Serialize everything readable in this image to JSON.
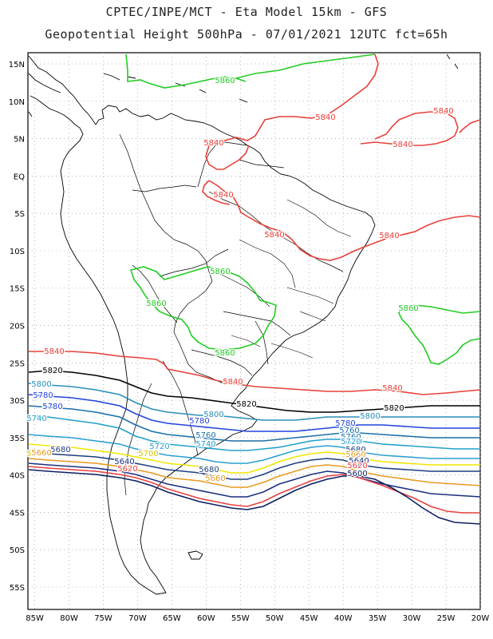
{
  "header": {
    "line1": "CPTEC/INPE/MCT -  Eta Model 15km - GFS",
    "line2": "Geopotential Height 500hPa - 07/01/2021 12UTC fct=65h"
  },
  "axes": {
    "lat_labels": [
      "15N",
      "10N",
      "5N",
      "EQ",
      "5S",
      "10S",
      "15S",
      "20S",
      "25S",
      "30S",
      "35S",
      "40S",
      "45S",
      "50S",
      "55S"
    ],
    "lon_labels": [
      "85W",
      "80W",
      "75W",
      "70W",
      "65W",
      "60W",
      "55W",
      "50W",
      "45W",
      "40W",
      "35W",
      "30W",
      "25W",
      "20W"
    ],
    "lat_range": [
      16.5,
      -58
    ],
    "lon_range": [
      -86,
      -20
    ]
  },
  "colors": {
    "c5860": "#22cc22",
    "c5840": "#e8403a",
    "c5820": "#000000",
    "c5800": "#2a8fb8",
    "c5780": "#2244dd",
    "c5760": "#1a6fa8",
    "c5740": "#22a0c8",
    "c5720": "#2a9fd0",
    "c5700": "#f2e600",
    "c5680": "#1f3f80",
    "c5660": "#e89a20",
    "c5640": "#1a2f80",
    "c5620": "#e84040",
    "c5600": "#0d1f60",
    "coast": "#000000"
  },
  "contour_labels": [
    {
      "text": "5860",
      "color": "#22cc22"
    },
    {
      "text": "5860",
      "color": "#22cc22"
    },
    {
      "text": "5860",
      "color": "#22cc22"
    },
    {
      "text": "5860",
      "color": "#22cc22"
    },
    {
      "text": "5860",
      "color": "#22cc22"
    },
    {
      "text": "5840",
      "color": "#e8403a"
    },
    {
      "text": "5840",
      "color": "#e8403a"
    },
    {
      "text": "5840",
      "color": "#e8403a"
    },
    {
      "text": "5840",
      "color": "#e8403a"
    },
    {
      "text": "5840",
      "color": "#e8403a"
    },
    {
      "text": "5840",
      "color": "#e8403a"
    },
    {
      "text": "5840",
      "color": "#e8403a"
    },
    {
      "text": "5840",
      "color": "#e8403a"
    },
    {
      "text": "5840",
      "color": "#e8403a"
    },
    {
      "text": "5840",
      "color": "#e8403a"
    },
    {
      "text": "5820",
      "color": "#000000"
    },
    {
      "text": "5820",
      "color": "#000000"
    },
    {
      "text": "5820",
      "color": "#000000"
    },
    {
      "text": "5800",
      "color": "#2a8fb8"
    },
    {
      "text": "5800",
      "color": "#2a8fb8"
    },
    {
      "text": "5800",
      "color": "#2a8fb8"
    },
    {
      "text": "5780",
      "color": "#2244dd"
    },
    {
      "text": "5780",
      "color": "#2244dd"
    },
    {
      "text": "5780",
      "color": "#2244dd"
    },
    {
      "text": "5780",
      "color": "#2244dd"
    },
    {
      "text": "5760",
      "color": "#1a6fa8"
    },
    {
      "text": "5760",
      "color": "#1a6fa8"
    },
    {
      "text": "5760",
      "color": "#1a6fa8"
    },
    {
      "text": "5740",
      "color": "#22a0c8"
    },
    {
      "text": "5740",
      "color": "#22a0c8"
    },
    {
      "text": "5740",
      "color": "#22a0c8"
    },
    {
      "text": "5720",
      "color": "#2a9fd0"
    },
    {
      "text": "5720",
      "color": "#2a9fd0"
    },
    {
      "text": "5700",
      "color": "#d4c400"
    },
    {
      "text": "5700",
      "color": "#d4c400"
    },
    {
      "text": "5680",
      "color": "#1f3f80"
    },
    {
      "text": "5680",
      "color": "#1f3f80"
    },
    {
      "text": "5680",
      "color": "#1f3f80"
    },
    {
      "text": "5660",
      "color": "#e89a20"
    },
    {
      "text": "5660",
      "color": "#e89a20"
    },
    {
      "text": "5660",
      "color": "#e89a20"
    },
    {
      "text": "5640",
      "color": "#1a2f80"
    },
    {
      "text": "5640",
      "color": "#1a2f80"
    },
    {
      "text": "5620",
      "color": "#e84040"
    },
    {
      "text": "5620",
      "color": "#e84040"
    },
    {
      "text": "5600",
      "color": "#0d1f60"
    }
  ]
}
